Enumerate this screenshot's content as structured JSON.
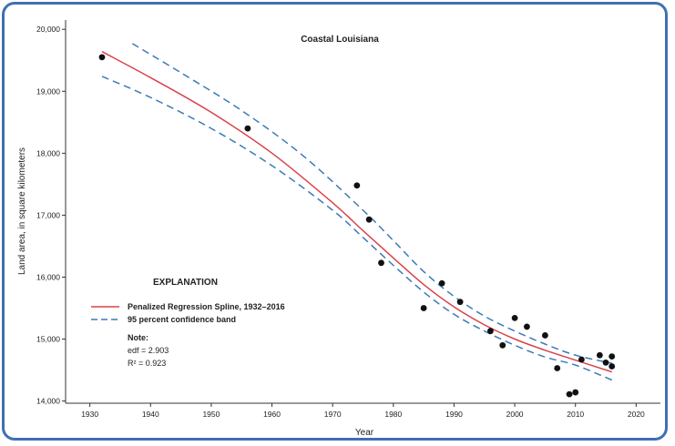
{
  "chart_data": {
    "type": "scatter",
    "title": "Coastal Louisiana",
    "xlabel": "Year",
    "ylabel": "Land area, in square kilometers",
    "xlim": [
      1926,
      2024
    ],
    "ylim": [
      13950,
      20150
    ],
    "x_ticks": [
      1930,
      1940,
      1950,
      1960,
      1970,
      1980,
      1990,
      2000,
      2010,
      2020
    ],
    "y_ticks": [
      14000,
      15000,
      16000,
      17000,
      18000,
      19000,
      20000
    ],
    "y_tick_labels": [
      "14,000",
      "15,000",
      "16,000",
      "17,000",
      "18,000",
      "19,000",
      "20,000"
    ],
    "x_tick_labels": [
      "1930",
      "1940",
      "1950",
      "1960",
      "1970",
      "1980",
      "1990",
      "2000",
      "2010",
      "2020"
    ],
    "grid": false,
    "colors": {
      "spline": "#d9424a",
      "band": "#3d7ab8",
      "points": "#111111",
      "frame": "#3f6fb5"
    },
    "observations": {
      "x": [
        1932,
        1956,
        1974,
        1976,
        1978,
        1985,
        1988,
        1991,
        1996,
        1998,
        2000,
        2002,
        2005,
        2007,
        2009,
        2010,
        2011,
        2014,
        2015,
        2016,
        2016
      ],
      "y": [
        19550,
        18400,
        17480,
        16930,
        16230,
        15500,
        15900,
        15600,
        15130,
        14900,
        15340,
        15200,
        15060,
        14530,
        14110,
        14140,
        14670,
        14740,
        14620,
        14720,
        14560
      ]
    },
    "series": [
      {
        "name": "Penalized Regression Spline, 1932–2016",
        "style": "solid",
        "x": [
          1932,
          1940,
          1950,
          1960,
          1970,
          1975,
          1980,
          1985,
          1990,
          1995,
          2000,
          2005,
          2010,
          2016
        ],
        "y": [
          19640,
          19220,
          18660,
          18000,
          17200,
          16750,
          16310,
          15880,
          15520,
          15230,
          15000,
          14820,
          14660,
          14470
        ]
      },
      {
        "name": "95 percent confidence band",
        "style": "dashed",
        "x": [
          1937,
          1945,
          1955,
          1965,
          1975,
          1980,
          1985,
          1990,
          1995,
          2000,
          2005,
          2010,
          2016
        ],
        "y": [
          19770,
          19300,
          18690,
          17970,
          17080,
          16590,
          16090,
          15690,
          15370,
          15130,
          14920,
          14740,
          14610
        ]
      },
      {
        "name": "",
        "style": "dashed",
        "x": [
          1932,
          1940,
          1950,
          1960,
          1970,
          1975,
          1980,
          1985,
          1990,
          1995,
          2000,
          2005,
          2010,
          2016
        ],
        "y": [
          19240,
          18900,
          18400,
          17800,
          17080,
          16640,
          16190,
          15760,
          15400,
          15130,
          14900,
          14710,
          14580,
          14340
        ]
      }
    ],
    "explanation": {
      "heading": "EXPLANATION",
      "note_label": "Note:",
      "edf": "edf = 2.903",
      "r2": "R² = 0.923"
    }
  }
}
